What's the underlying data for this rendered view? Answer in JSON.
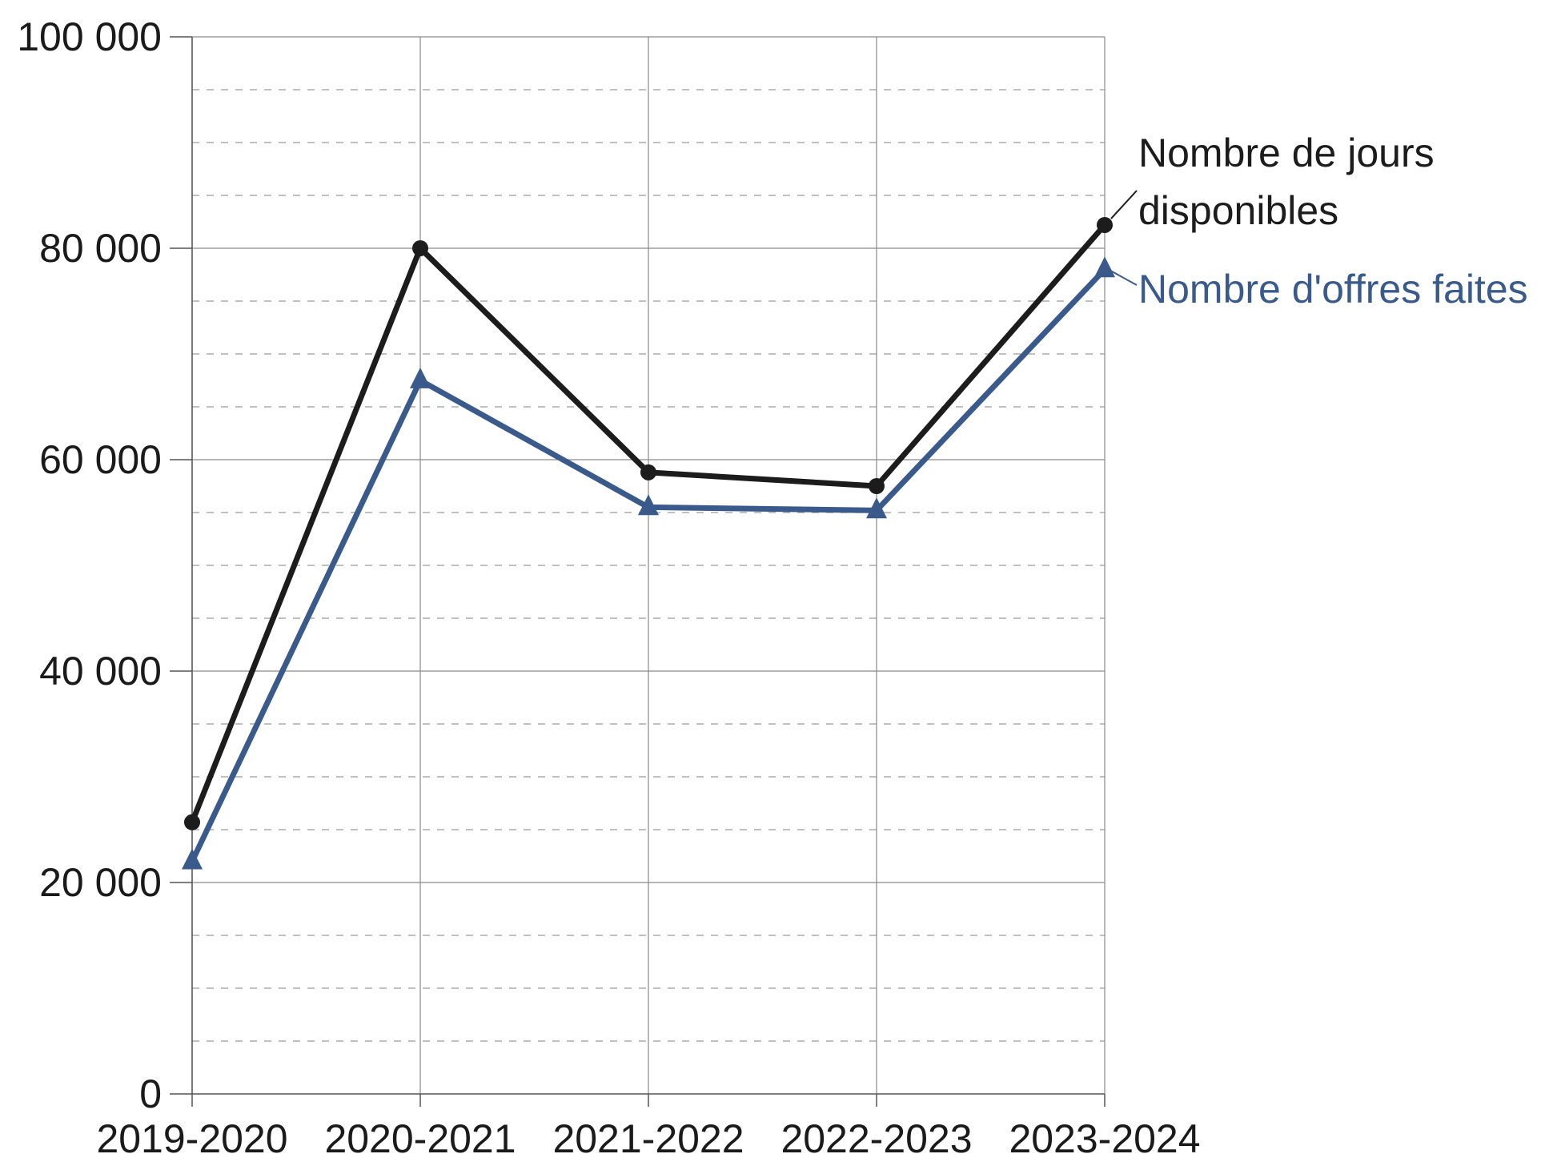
{
  "chart_data": {
    "type": "line",
    "categories": [
      "2019-2020",
      "2020-2021",
      "2021-2022",
      "2022-2023",
      "2023-2024"
    ],
    "ylim": [
      0,
      100000
    ],
    "y_major_ticks": [
      0,
      20000,
      40000,
      60000,
      80000,
      100000
    ],
    "y_tick_labels": [
      "0",
      "20 000",
      "40 000",
      "60 000",
      "80 000",
      "100 000"
    ],
    "y_minor_step": 5000,
    "grid": true,
    "title": "",
    "xlabel": "",
    "ylabel": "",
    "series": [
      {
        "name_lines": [
          "Nombre de jours",
          "disponibles"
        ],
        "values": [
          25700,
          80000,
          58800,
          57500,
          82200
        ],
        "color": "#1c1c1c",
        "marker": "circle"
      },
      {
        "name_lines": [
          "Nombre d'offres faites"
        ],
        "values": [
          22000,
          67500,
          55500,
          55200,
          78000
        ],
        "color": "#3a5a8c",
        "marker": "triangle"
      }
    ]
  }
}
